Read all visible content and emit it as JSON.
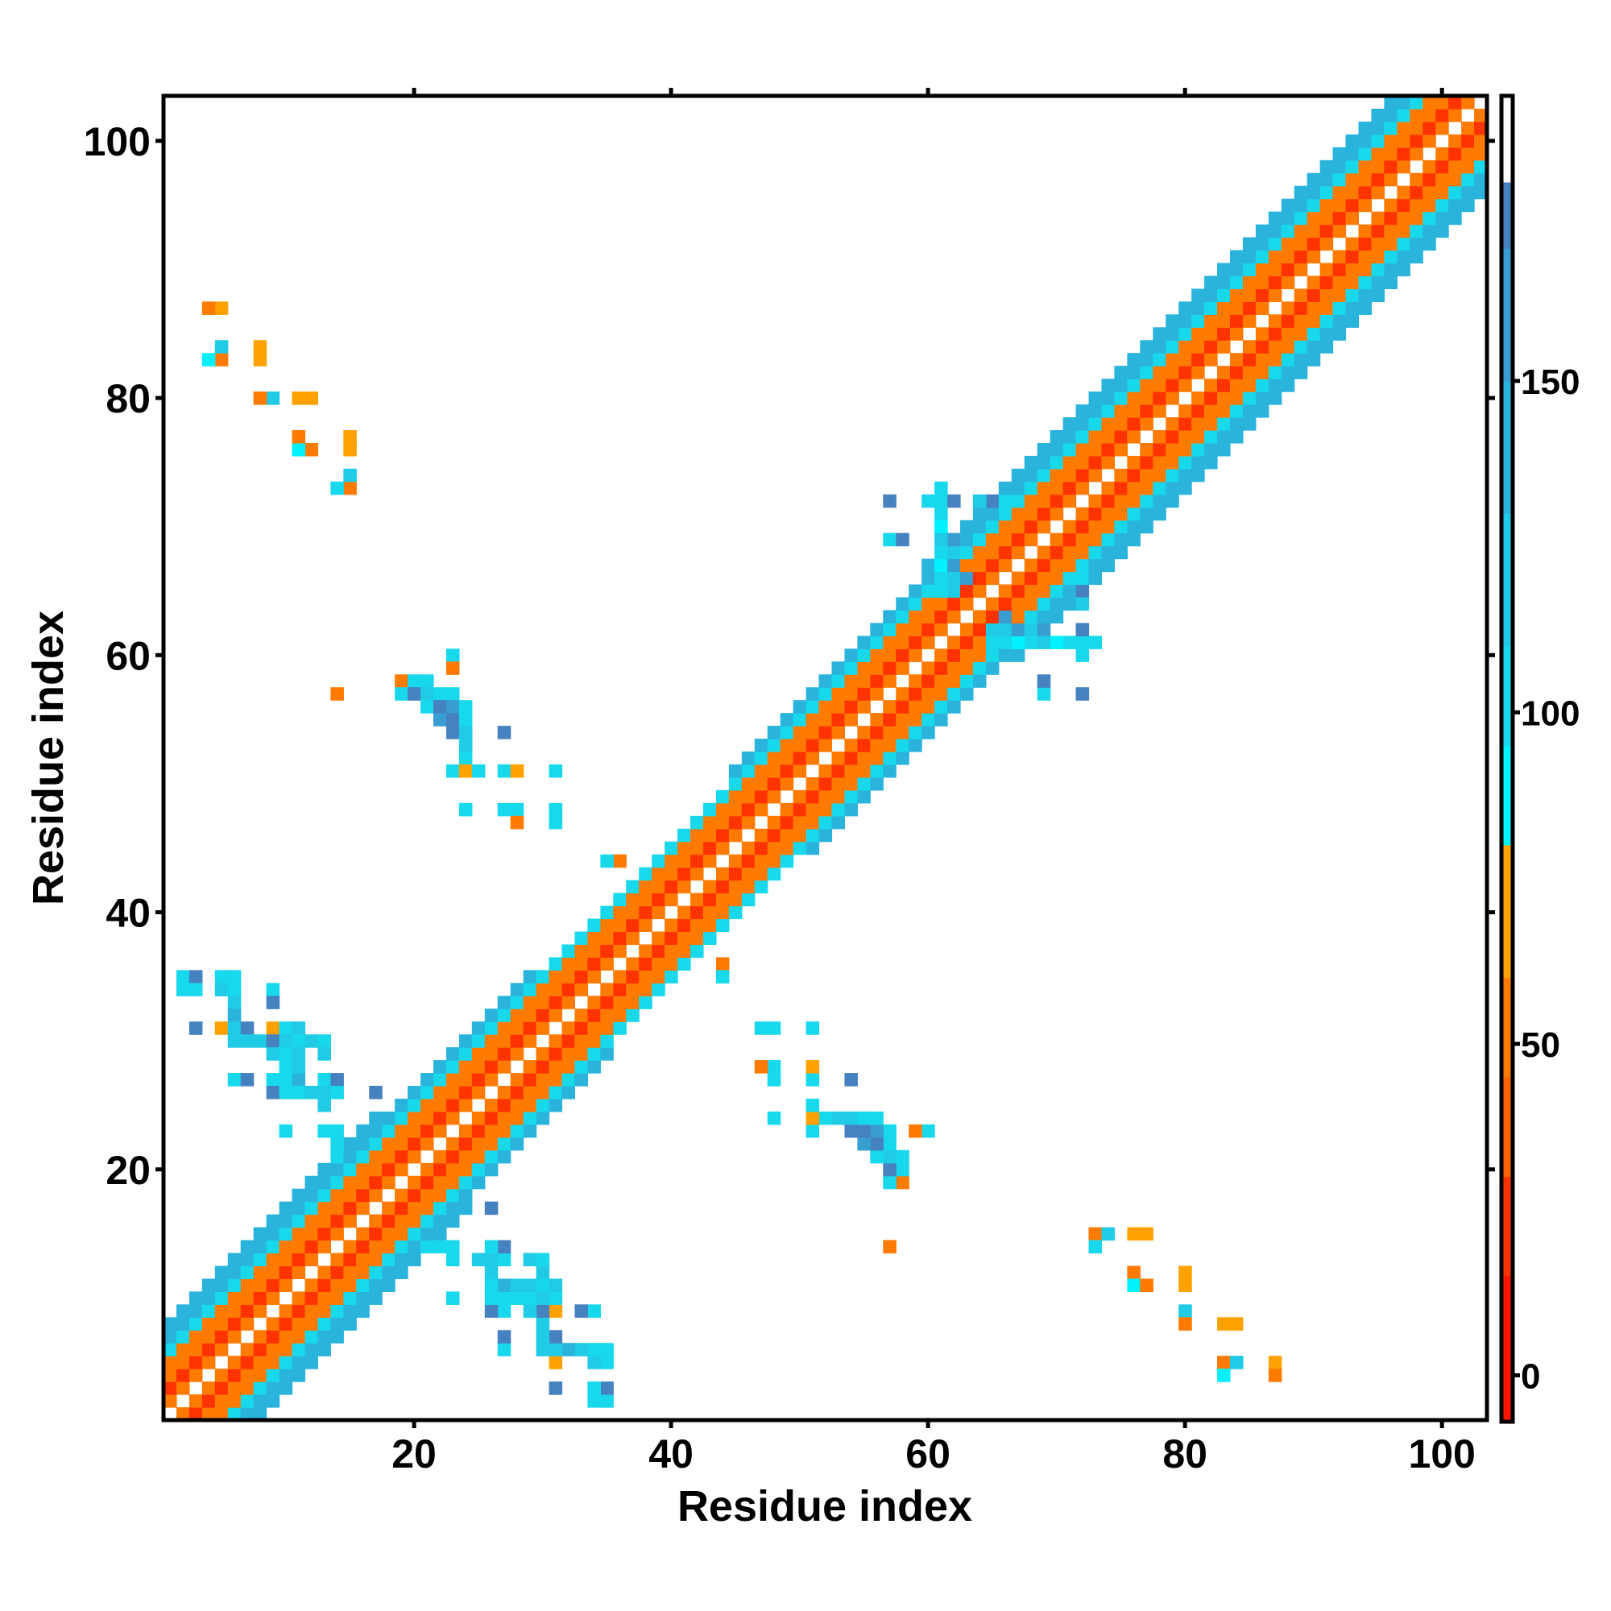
{
  "chart_data": {
    "type": "heatmap",
    "title": "",
    "xlabel": "Residue index",
    "ylabel": "Residue index",
    "xlim": [
      0.5,
      103.5
    ],
    "ylim": [
      0.5,
      103.5
    ],
    "n_residues": 103,
    "xticks": [
      20,
      40,
      60,
      80,
      100
    ],
    "yticks": [
      20,
      40,
      60,
      80,
      100
    ],
    "xtick_labels": [
      "20",
      "40",
      "60",
      "80",
      "100"
    ],
    "ytick_labels": [
      "20",
      "40",
      "60",
      "80",
      "100"
    ],
    "grid": false,
    "symmetric": true,
    "colorbar": {
      "range": [
        -7,
        193
      ],
      "ticks": [
        0,
        50,
        100,
        150
      ],
      "tick_labels": [
        "0",
        "50",
        "100",
        "150"
      ],
      "placement": "right",
      "levels": [
        {
          "max": 15,
          "color": "#ff1400"
        },
        {
          "max": 30,
          "color": "#ff3300"
        },
        {
          "max": 45,
          "color": "#ff6000"
        },
        {
          "max": 60,
          "color": "#ff7a00"
        },
        {
          "max": 80,
          "color": "#ffa200"
        },
        {
          "max": 95,
          "color": "#00f2ff"
        },
        {
          "max": 110,
          "color": "#18d8ec"
        },
        {
          "max": 130,
          "color": "#20cbe6"
        },
        {
          "max": 150,
          "color": "#2ab4dc"
        },
        {
          "max": 170,
          "color": "#389dd0"
        },
        {
          "max": 180,
          "color": "#4682c0"
        },
        {
          "max": 193,
          "color": "#ffffff"
        }
      ]
    },
    "diagonal_band": {
      "widths": [
        [
          1,
          18,
          7
        ],
        [
          18,
          30,
          6
        ],
        [
          30,
          45,
          5
        ],
        [
          45,
          60,
          6
        ],
        [
          60,
          100,
          7
        ],
        [
          100,
          103,
          3
        ]
      ],
      "offset_values": {
        "1": [
          45,
          50,
          40,
          55,
          45
        ],
        "2": [
          50,
          20,
          55,
          45,
          70
        ],
        "3": [
          105,
          40,
          110,
          20,
          50
        ],
        "4": [
          50,
          105,
          45,
          110,
          25
        ],
        "5": [
          105,
          110,
          45,
          120,
          100
        ],
        "6": [
          110,
          120,
          105,
          140,
          115
        ],
        "7": [
          115,
          130,
          120,
          110,
          150
        ]
      }
    },
    "cells": [
      [
        2,
        35,
        105
      ],
      [
        3,
        35,
        170
      ],
      [
        5,
        35,
        105
      ],
      [
        2,
        34,
        105
      ],
      [
        3,
        34,
        105
      ],
      [
        5,
        34,
        105
      ],
      [
        6,
        34,
        105
      ],
      [
        9,
        34,
        120
      ],
      [
        6,
        33,
        120
      ],
      [
        9,
        33,
        170
      ],
      [
        6,
        32,
        120
      ],
      [
        3,
        31,
        170
      ],
      [
        5,
        31,
        70
      ],
      [
        6,
        31,
        120
      ],
      [
        7,
        31,
        170
      ],
      [
        9,
        31,
        70
      ],
      [
        10,
        31,
        170
      ],
      [
        6,
        30,
        105
      ],
      [
        7,
        30,
        105
      ],
      [
        8,
        30,
        120
      ],
      [
        9,
        30,
        120
      ],
      [
        10,
        30,
        105
      ],
      [
        11,
        30,
        105
      ],
      [
        12,
        30,
        120
      ],
      [
        13,
        30,
        140
      ],
      [
        9,
        29,
        105
      ],
      [
        10,
        29,
        105
      ],
      [
        13,
        29,
        150
      ],
      [
        10,
        28,
        120
      ],
      [
        6,
        27,
        105
      ],
      [
        7,
        27,
        170
      ],
      [
        9,
        27,
        105
      ],
      [
        10,
        27,
        120
      ],
      [
        11,
        27,
        140
      ],
      [
        13,
        27,
        105
      ],
      [
        14,
        27,
        170
      ],
      [
        9,
        26,
        170
      ],
      [
        10,
        26,
        105
      ],
      [
        11,
        26,
        105
      ],
      [
        13,
        26,
        120
      ],
      [
        14,
        26,
        88
      ],
      [
        17,
        26,
        170
      ],
      [
        13,
        25,
        120
      ],
      [
        10,
        23,
        105
      ],
      [
        13,
        23,
        105
      ],
      [
        14,
        23,
        120
      ],
      [
        14,
        22,
        120
      ],
      [
        21,
        14,
        105
      ],
      [
        22,
        14,
        105
      ],
      [
        23,
        14,
        105
      ],
      [
        26,
        14,
        105
      ],
      [
        27,
        14,
        170
      ],
      [
        23,
        13,
        105
      ],
      [
        25,
        13,
        120
      ],
      [
        26,
        13,
        120
      ],
      [
        27,
        13,
        105
      ],
      [
        29,
        13,
        120
      ],
      [
        30,
        13,
        105
      ],
      [
        26,
        12,
        120
      ],
      [
        30,
        12,
        120
      ],
      [
        26,
        11,
        105
      ],
      [
        27,
        11,
        140
      ],
      [
        28,
        11,
        120
      ],
      [
        29,
        11,
        120
      ],
      [
        30,
        11,
        105
      ],
      [
        31,
        11,
        120
      ],
      [
        23,
        10,
        105
      ],
      [
        26,
        10,
        105
      ],
      [
        27,
        10,
        105
      ],
      [
        28,
        10,
        105
      ],
      [
        30,
        10,
        120
      ],
      [
        31,
        10,
        105
      ],
      [
        26,
        9,
        170
      ],
      [
        27,
        9,
        105
      ],
      [
        29,
        9,
        120
      ],
      [
        30,
        9,
        170
      ],
      [
        31,
        9,
        70
      ],
      [
        33,
        9,
        170
      ],
      [
        34,
        9,
        105
      ],
      [
        27,
        7,
        170
      ],
      [
        30,
        7,
        120
      ],
      [
        27,
        6,
        105
      ],
      [
        30,
        6,
        120
      ],
      [
        31,
        6,
        120
      ],
      [
        32,
        6,
        140
      ],
      [
        33,
        6,
        120
      ],
      [
        34,
        6,
        105
      ],
      [
        35,
        6,
        105
      ],
      [
        31,
        5,
        70
      ],
      [
        34,
        5,
        120
      ],
      [
        31,
        3,
        170
      ],
      [
        34,
        3,
        105
      ],
      [
        35,
        3,
        170
      ],
      [
        34,
        2,
        105
      ],
      [
        35,
        2,
        105
      ],
      [
        23,
        60,
        105
      ],
      [
        23,
        59,
        50
      ],
      [
        19,
        58,
        50
      ],
      [
        20,
        58,
        105
      ],
      [
        21,
        58,
        105
      ],
      [
        19,
        57,
        105
      ],
      [
        20,
        57,
        170
      ],
      [
        21,
        57,
        120
      ],
      [
        22,
        57,
        105
      ],
      [
        23,
        57,
        105
      ],
      [
        14,
        57,
        50
      ],
      [
        21,
        56,
        105
      ],
      [
        22,
        56,
        170
      ],
      [
        23,
        56,
        150
      ],
      [
        24,
        56,
        105
      ],
      [
        22,
        55,
        150
      ],
      [
        23,
        55,
        170
      ],
      [
        24,
        55,
        105
      ],
      [
        23,
        54,
        170
      ],
      [
        24,
        54,
        120
      ],
      [
        27,
        54,
        170
      ],
      [
        24,
        53,
        120
      ],
      [
        24,
        52,
        105
      ],
      [
        23,
        51,
        105
      ],
      [
        24,
        51,
        70
      ],
      [
        25,
        51,
        105
      ],
      [
        27,
        51,
        105
      ],
      [
        28,
        51,
        70
      ],
      [
        31,
        51,
        105
      ],
      [
        24,
        48,
        105
      ],
      [
        27,
        48,
        105
      ],
      [
        28,
        48,
        105
      ],
      [
        31,
        48,
        105
      ],
      [
        28,
        47,
        50
      ],
      [
        31,
        47,
        105
      ],
      [
        36,
        44,
        50
      ],
      [
        35,
        44,
        105
      ],
      [
        73,
        15,
        50
      ],
      [
        74,
        15,
        120
      ],
      [
        76,
        15,
        70
      ],
      [
        77,
        15,
        70
      ],
      [
        73,
        14,
        105
      ],
      [
        76,
        12,
        50
      ],
      [
        80,
        12,
        70
      ],
      [
        76,
        11,
        88
      ],
      [
        77,
        11,
        50
      ],
      [
        80,
        11,
        70
      ],
      [
        80,
        9,
        120
      ],
      [
        80,
        8,
        50
      ],
      [
        83,
        8,
        70
      ],
      [
        84,
        8,
        70
      ],
      [
        83,
        5,
        50
      ],
      [
        84,
        5,
        120
      ],
      [
        87,
        5,
        70
      ],
      [
        83,
        4,
        88
      ],
      [
        87,
        4,
        50
      ],
      [
        57,
        72,
        170
      ],
      [
        60,
        72,
        105
      ],
      [
        61,
        73,
        105
      ],
      [
        61,
        72,
        105
      ],
      [
        62,
        72,
        170
      ],
      [
        64,
        72,
        120
      ],
      [
        65,
        72,
        170
      ],
      [
        66,
        72,
        105
      ],
      [
        57,
        69,
        105
      ],
      [
        58,
        69,
        170
      ],
      [
        61,
        71,
        105
      ],
      [
        61,
        70,
        88
      ],
      [
        61,
        69,
        120
      ],
      [
        62,
        69,
        150
      ],
      [
        61,
        68,
        105
      ],
      [
        62,
        68,
        120
      ],
      [
        61,
        67,
        88
      ],
      [
        62,
        67,
        150
      ],
      [
        61,
        66,
        105
      ],
      [
        62,
        66,
        120
      ],
      [
        63,
        66,
        150
      ],
      [
        61,
        65,
        105
      ],
      [
        62,
        65,
        120
      ]
    ]
  }
}
